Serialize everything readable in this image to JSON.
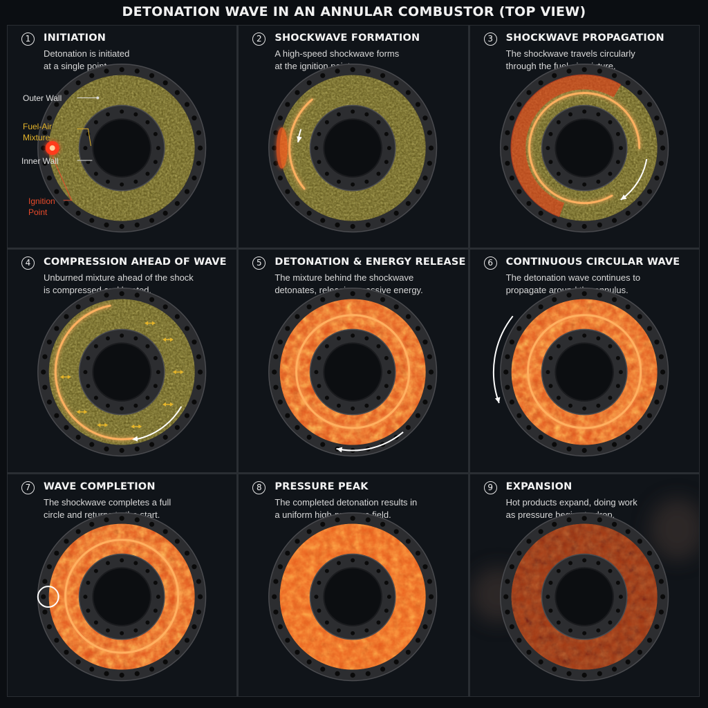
{
  "title": "DETONATION WAVE IN AN ANNULAR COMBUSTOR (TOP VIEW)",
  "colors": {
    "background": "#0b0e12",
    "wall": "#2c2d30",
    "bolt": "#0a0a0a",
    "mixture": "#5b5218",
    "burning": "#e0501a",
    "shock": "#ffb060",
    "label_yellow": "#e6b52a",
    "label_red": "#e84a2a"
  },
  "labels": {
    "outer_wall": "Outer Wall",
    "fuel_air_1": "Fuel-Air",
    "fuel_air_2": "Mixture",
    "inner_wall": "Inner Wall",
    "ignition_1": "Ignition",
    "ignition_2": "Point"
  },
  "panels": [
    {
      "number": "1",
      "title": "INITIATION",
      "desc_1": "Detonation is initiated",
      "desc_2": "at a single point."
    },
    {
      "number": "2",
      "title": "SHOCKWAVE FORMATION",
      "desc_1": "A high-speed shockwave forms",
      "desc_2": "at the ignition point."
    },
    {
      "number": "3",
      "title": "SHOCKWAVE PROPAGATION",
      "desc_1": "The shockwave travels circularly",
      "desc_2": "through the fuel-air mixture."
    },
    {
      "number": "4",
      "title": "COMPRESSION AHEAD OF WAVE",
      "desc_1": "Unburned mixture ahead of the shock",
      "desc_2": "is compressed and heated."
    },
    {
      "number": "5",
      "title": "DETONATION & ENERGY RELEASE",
      "desc_1": "The mixture behind the shockwave",
      "desc_2": "detonates, releasing massive energy."
    },
    {
      "number": "6",
      "title": "CONTINUOUS CIRCULAR WAVE",
      "desc_1": "The detonation wave continues to",
      "desc_2": "propagate around the annulus."
    },
    {
      "number": "7",
      "title": "WAVE COMPLETION",
      "desc_1": "The shockwave completes a full",
      "desc_2": "circle and returns to the start."
    },
    {
      "number": "8",
      "title": "PRESSURE PEAK",
      "desc_1": "The completed detonation results in",
      "desc_2": "a uniform high-pressure field."
    },
    {
      "number": "9",
      "title": "EXPANSION",
      "desc_1": "Hot products expand, doing work",
      "desc_2": "as pressure begins to drop."
    }
  ]
}
